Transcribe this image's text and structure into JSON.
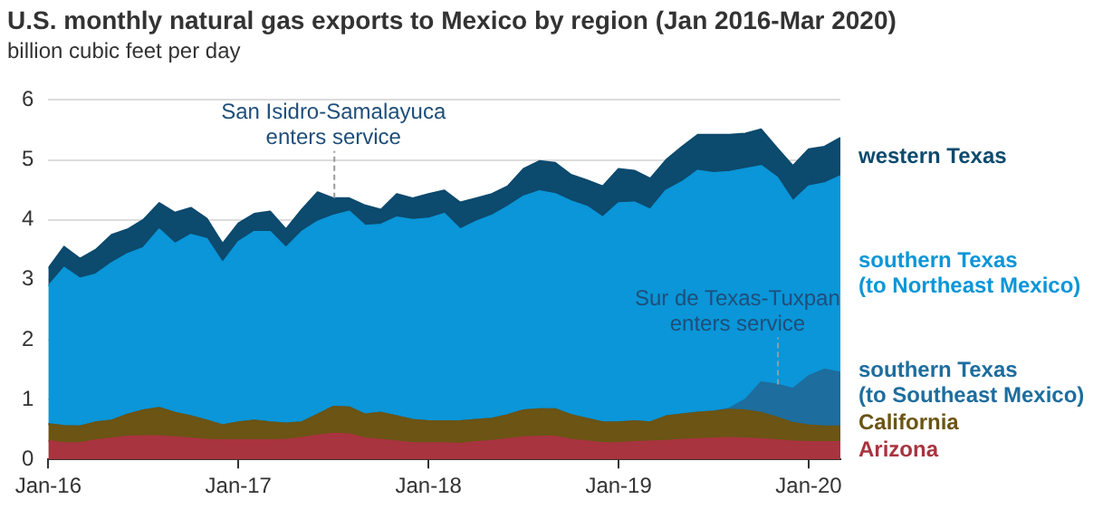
{
  "chart_data": {
    "type": "area",
    "title": "U.S. monthly natural gas exports to Mexico by region (Jan 2016-Mar 2020)",
    "subtitle": "billion cubic feet per day",
    "x": [
      "2016-01",
      "2016-02",
      "2016-03",
      "2016-04",
      "2016-05",
      "2016-06",
      "2016-07",
      "2016-08",
      "2016-09",
      "2016-10",
      "2016-11",
      "2016-12",
      "2017-01",
      "2017-02",
      "2017-03",
      "2017-04",
      "2017-05",
      "2017-06",
      "2017-07",
      "2017-08",
      "2017-09",
      "2017-10",
      "2017-11",
      "2017-12",
      "2018-01",
      "2018-02",
      "2018-03",
      "2018-04",
      "2018-05",
      "2018-06",
      "2018-07",
      "2018-08",
      "2018-09",
      "2018-10",
      "2018-11",
      "2018-12",
      "2019-01",
      "2019-02",
      "2019-03",
      "2019-04",
      "2019-05",
      "2019-06",
      "2019-07",
      "2019-08",
      "2019-09",
      "2019-10",
      "2019-11",
      "2019-12",
      "2020-01",
      "2020-02",
      "2020-03"
    ],
    "stacked": true,
    "series": [
      {
        "name": "Arizona",
        "color": "#a8343f",
        "values": [
          0.31,
          0.27,
          0.27,
          0.32,
          0.35,
          0.38,
          0.39,
          0.39,
          0.37,
          0.35,
          0.33,
          0.32,
          0.32,
          0.32,
          0.32,
          0.33,
          0.36,
          0.4,
          0.43,
          0.42,
          0.35,
          0.33,
          0.3,
          0.27,
          0.27,
          0.27,
          0.26,
          0.29,
          0.31,
          0.34,
          0.37,
          0.38,
          0.38,
          0.33,
          0.3,
          0.27,
          0.27,
          0.29,
          0.3,
          0.31,
          0.33,
          0.34,
          0.35,
          0.36,
          0.35,
          0.34,
          0.32,
          0.3,
          0.29,
          0.29,
          0.29
        ]
      },
      {
        "name": "California",
        "color": "#6b5414",
        "values": [
          0.28,
          0.29,
          0.28,
          0.3,
          0.3,
          0.37,
          0.43,
          0.47,
          0.41,
          0.37,
          0.32,
          0.25,
          0.3,
          0.33,
          0.3,
          0.27,
          0.26,
          0.35,
          0.45,
          0.45,
          0.4,
          0.45,
          0.42,
          0.39,
          0.37,
          0.37,
          0.38,
          0.37,
          0.37,
          0.4,
          0.45,
          0.46,
          0.46,
          0.41,
          0.38,
          0.35,
          0.35,
          0.35,
          0.32,
          0.41,
          0.42,
          0.44,
          0.45,
          0.47,
          0.47,
          0.44,
          0.38,
          0.31,
          0.28,
          0.26,
          0.26
        ]
      },
      {
        "name": "southern Texas\n(to Southeast Mexico)",
        "color": "#1d6d9e",
        "values": [
          0,
          0,
          0,
          0,
          0,
          0,
          0,
          0,
          0,
          0,
          0,
          0,
          0,
          0,
          0,
          0,
          0,
          0,
          0,
          0,
          0,
          0,
          0,
          0,
          0,
          0,
          0,
          0,
          0,
          0,
          0,
          0,
          0,
          0,
          0,
          0,
          0,
          0,
          0,
          0,
          0,
          0,
          0,
          0.02,
          0.18,
          0.51,
          0.55,
          0.57,
          0.82,
          0.95,
          0.9
        ]
      },
      {
        "name": "southern Texas\n(to Northeast Mexico)",
        "color": "#0a96d8",
        "values": [
          2.3,
          2.64,
          2.47,
          2.47,
          2.63,
          2.68,
          2.71,
          2.98,
          2.82,
          3.03,
          3.03,
          2.71,
          3.01,
          3.15,
          3.18,
          2.93,
          3.18,
          3.22,
          3.19,
          3.27,
          3.15,
          3.14,
          3.32,
          3.34,
          3.38,
          3.46,
          3.2,
          3.31,
          3.39,
          3.48,
          3.57,
          3.64,
          3.59,
          3.57,
          3.54,
          3.42,
          3.66,
          3.65,
          3.55,
          3.77,
          3.88,
          4.04,
          3.98,
          3.95,
          3.85,
          3.61,
          3.46,
          3.13,
          3.17,
          3.11,
          3.28
        ]
      },
      {
        "name": "western Texas",
        "color": "#0c4a6e",
        "values": [
          0.3,
          0.35,
          0.33,
          0.41,
          0.47,
          0.41,
          0.47,
          0.44,
          0.52,
          0.45,
          0.34,
          0.32,
          0.31,
          0.3,
          0.34,
          0.31,
          0.37,
          0.49,
          0.29,
          0.22,
          0.34,
          0.25,
          0.39,
          0.36,
          0.41,
          0.39,
          0.45,
          0.39,
          0.36,
          0.34,
          0.46,
          0.5,
          0.52,
          0.44,
          0.44,
          0.52,
          0.57,
          0.53,
          0.52,
          0.51,
          0.59,
          0.6,
          0.64,
          0.62,
          0.59,
          0.61,
          0.49,
          0.59,
          0.62,
          0.61,
          0.64
        ]
      }
    ],
    "xlim": [
      "2016-01",
      "2020-03"
    ],
    "xticks": [
      {
        "value": "2016-01",
        "label": "Jan-16"
      },
      {
        "value": "2017-01",
        "label": "Jan-17"
      },
      {
        "value": "2018-01",
        "label": "Jan-18"
      },
      {
        "value": "2019-01",
        "label": "Jan-19"
      },
      {
        "value": "2020-01",
        "label": "Jan-20"
      }
    ],
    "ylim": [
      0,
      6
    ],
    "yticks": [
      0,
      1,
      2,
      3,
      4,
      5,
      6
    ],
    "grid": "y",
    "annotations": [
      {
        "text": "San Isidro-Samalayuca enters service",
        "x": "2017-07",
        "y": 4.36
      },
      {
        "text": "Sur de Texas-Tuxpan enters service",
        "x": "2019-11",
        "y": 1.25
      }
    ]
  }
}
